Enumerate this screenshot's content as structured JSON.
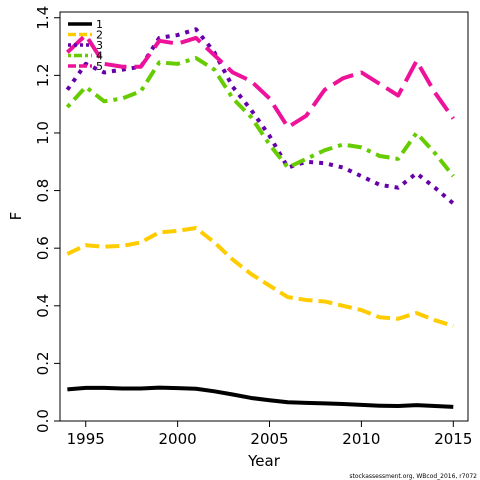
{
  "chart_data": {
    "type": "line",
    "xlabel": "Year",
    "ylabel": "F",
    "xlim": [
      1993.6,
      2015.8
    ],
    "ylim": [
      0.0,
      1.42
    ],
    "xticks": [
      1995,
      2000,
      2005,
      2010,
      2015
    ],
    "yticks": [
      0.0,
      0.2,
      0.4,
      0.6,
      0.8,
      1.0,
      1.2,
      1.4
    ],
    "ytick_labels": [
      "0.0",
      "0.2",
      "0.4",
      "0.6",
      "0.8",
      "1.0",
      "1.2",
      "1.4"
    ],
    "legend_position": "top-left",
    "grid": false,
    "x": [
      1994,
      1995,
      1996,
      1997,
      1998,
      1999,
      2000,
      2001,
      2002,
      2003,
      2004,
      2005,
      2006,
      2007,
      2008,
      2009,
      2010,
      2011,
      2012,
      2013,
      2014,
      2015
    ],
    "series": [
      {
        "name": "1",
        "color": "#000000",
        "dash": "solid",
        "values": [
          0.11,
          0.115,
          0.115,
          0.113,
          0.113,
          0.116,
          0.114,
          0.112,
          0.103,
          0.092,
          0.08,
          0.072,
          0.065,
          0.063,
          0.061,
          0.059,
          0.056,
          0.053,
          0.052,
          0.055,
          0.052,
          0.049
        ]
      },
      {
        "name": "2",
        "color": "#FFCC00",
        "dash": "dashed",
        "values": [
          0.58,
          0.61,
          0.605,
          0.608,
          0.62,
          0.655,
          0.66,
          0.67,
          0.62,
          0.56,
          0.51,
          0.47,
          0.43,
          0.42,
          0.415,
          0.4,
          0.385,
          0.36,
          0.355,
          0.375,
          0.35,
          0.33
        ]
      },
      {
        "name": "3",
        "color": "#6600AA",
        "dash": "dotted",
        "values": [
          1.15,
          1.24,
          1.21,
          1.22,
          1.23,
          1.33,
          1.34,
          1.36,
          1.28,
          1.16,
          1.08,
          0.99,
          0.88,
          0.9,
          0.895,
          0.88,
          0.85,
          0.82,
          0.81,
          0.86,
          0.81,
          0.755
        ]
      },
      {
        "name": "4",
        "color": "#66CC00",
        "dash": "dashdot",
        "values": [
          1.09,
          1.16,
          1.11,
          1.12,
          1.145,
          1.245,
          1.24,
          1.26,
          1.22,
          1.12,
          1.055,
          0.96,
          0.88,
          0.91,
          0.94,
          0.96,
          0.95,
          0.92,
          0.91,
          1.0,
          0.93,
          0.85
        ]
      },
      {
        "name": "5",
        "color": "#EE1199",
        "dash": "longdash",
        "values": [
          1.28,
          1.34,
          1.24,
          1.23,
          1.23,
          1.32,
          1.31,
          1.33,
          1.27,
          1.21,
          1.18,
          1.12,
          1.02,
          1.06,
          1.15,
          1.19,
          1.21,
          1.17,
          1.13,
          1.25,
          1.14,
          1.05
        ]
      }
    ]
  },
  "credit": "stockassessment.org, WBcod_2016, r7072"
}
